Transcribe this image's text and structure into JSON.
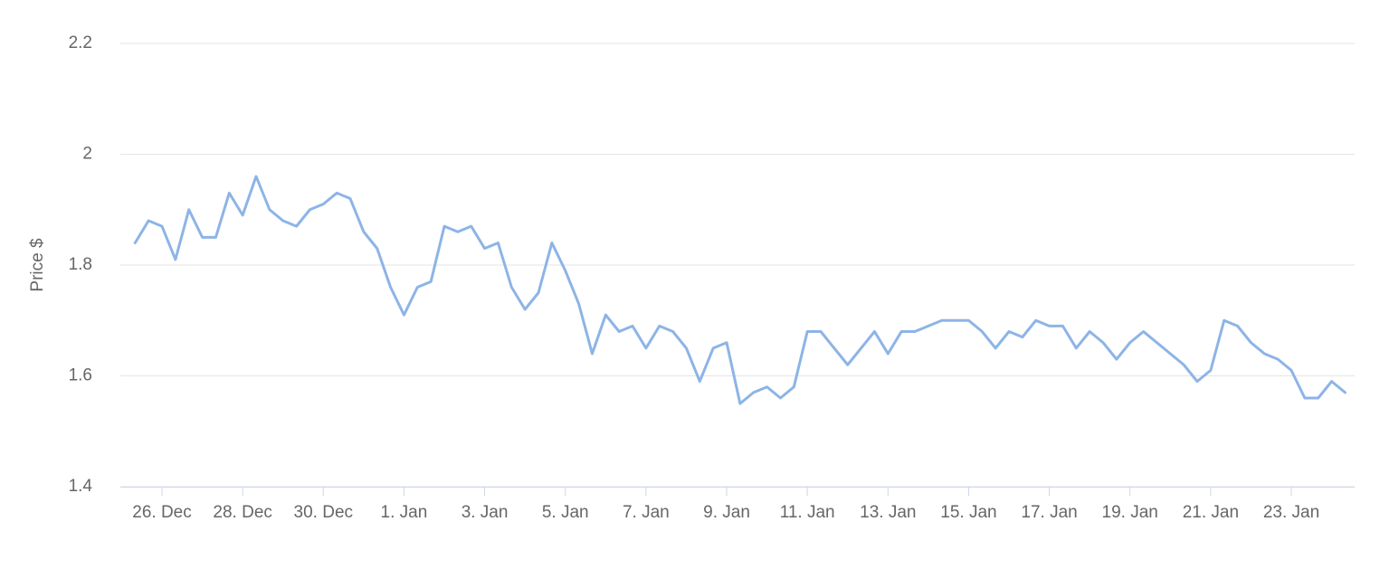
{
  "chart_data": {
    "type": "line",
    "y_label": "Price $",
    "categories": [
      null,
      null,
      "26. Dec",
      null,
      null,
      null,
      null,
      null,
      "28. Dec",
      null,
      null,
      null,
      null,
      null,
      "30. Dec",
      null,
      null,
      null,
      null,
      null,
      "1. Jan",
      null,
      null,
      null,
      null,
      null,
      "3. Jan",
      null,
      null,
      null,
      null,
      null,
      "5. Jan",
      null,
      null,
      null,
      null,
      null,
      "7. Jan",
      null,
      null,
      null,
      null,
      null,
      "9. Jan",
      null,
      null,
      null,
      null,
      null,
      "11. Jan",
      null,
      null,
      null,
      null,
      null,
      "13. Jan",
      null,
      null,
      null,
      null,
      null,
      "15. Jan",
      null,
      null,
      null,
      null,
      null,
      "17. Jan",
      null,
      null,
      null,
      null,
      null,
      "19. Jan",
      null,
      null,
      null,
      null,
      null,
      "21. Jan",
      null,
      null,
      null,
      null,
      null,
      "23. Jan",
      null,
      null,
      null,
      null
    ],
    "values": [
      1.84,
      1.88,
      1.87,
      1.81,
      1.9,
      1.85,
      1.85,
      1.93,
      1.89,
      1.96,
      1.9,
      1.88,
      1.87,
      1.9,
      1.91,
      1.93,
      1.92,
      1.86,
      1.83,
      1.76,
      1.71,
      1.76,
      1.77,
      1.87,
      1.86,
      1.87,
      1.83,
      1.84,
      1.76,
      1.72,
      1.75,
      1.84,
      1.79,
      1.73,
      1.64,
      1.71,
      1.68,
      1.69,
      1.65,
      1.69,
      1.68,
      1.65,
      1.59,
      1.65,
      1.66,
      1.55,
      1.57,
      1.58,
      1.56,
      1.58,
      1.68,
      1.68,
      1.65,
      1.62,
      1.65,
      1.68,
      1.64,
      1.68,
      1.68,
      1.69,
      1.7,
      1.7,
      1.7,
      1.68,
      1.65,
      1.68,
      1.67,
      1.7,
      1.69,
      1.69,
      1.65,
      1.68,
      1.66,
      1.63,
      1.66,
      1.68,
      1.66,
      1.64,
      1.62,
      1.59,
      1.61,
      1.7,
      1.69,
      1.66,
      1.64,
      1.63,
      1.61,
      1.56,
      1.56,
      1.59,
      1.57
    ],
    "color": "#8db4e6",
    "ylim": [
      1.4,
      2.2
    ],
    "yticks": [
      1.4,
      1.6,
      1.8,
      2,
      2.2
    ],
    "grid": true
  }
}
